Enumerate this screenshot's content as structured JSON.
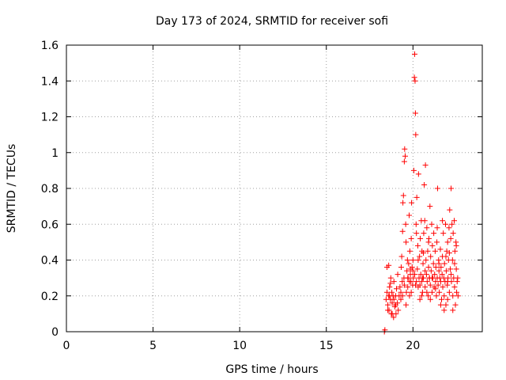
{
  "chart_data": {
    "type": "scatter",
    "title": "Day 173 of 2024, SRMTID for receiver sofi",
    "xlabel": "GPS time / hours",
    "ylabel": "SRMTID / TECUs",
    "xlim": [
      0,
      24
    ],
    "ylim": [
      0,
      1.6
    ],
    "xticks": [
      0,
      5,
      10,
      15,
      20
    ],
    "xtick_labels": [
      "0",
      "5",
      "10",
      "15",
      "20"
    ],
    "yticks": [
      0,
      0.2,
      0.4,
      0.6,
      0.8,
      1.0,
      1.2,
      1.4,
      1.6
    ],
    "ytick_labels": [
      "0",
      "0.2",
      "0.4",
      "0.6",
      "0.8",
      "1",
      "1.2",
      "1.4",
      "1.6"
    ],
    "grid": true,
    "marker": "plus",
    "series_color": "#ff0000",
    "series": [
      {
        "name": "SRMTID",
        "points": [
          [
            18.35,
            0.0
          ],
          [
            18.38,
            0.01
          ],
          [
            18.45,
            0.18
          ],
          [
            18.5,
            0.22
          ],
          [
            18.55,
            0.15
          ],
          [
            18.6,
            0.2
          ],
          [
            18.62,
            0.12
          ],
          [
            18.65,
            0.25
          ],
          [
            18.7,
            0.18
          ],
          [
            18.72,
            0.3
          ],
          [
            18.75,
            0.1
          ],
          [
            18.78,
            0.22
          ],
          [
            18.8,
            0.16
          ],
          [
            18.85,
            0.2
          ],
          [
            18.88,
            0.08
          ],
          [
            18.9,
            0.28
          ],
          [
            18.95,
            0.14
          ],
          [
            19.0,
            0.2
          ],
          [
            19.02,
            0.1
          ],
          [
            19.05,
            0.24
          ],
          [
            19.1,
            0.16
          ],
          [
            19.12,
            0.32
          ],
          [
            19.15,
            0.12
          ],
          [
            19.2,
            0.2
          ],
          [
            18.5,
            0.36
          ],
          [
            18.6,
            0.37
          ],
          [
            18.7,
            0.27
          ],
          [
            18.8,
            0.1
          ],
          [
            18.9,
            0.18
          ],
          [
            19.0,
            0.15
          ],
          [
            18.55,
            0.12
          ],
          [
            18.65,
            0.2
          ],
          [
            19.25,
            0.25
          ],
          [
            19.3,
            0.18
          ],
          [
            19.32,
            0.36
          ],
          [
            19.35,
            0.42
          ],
          [
            19.38,
            0.28
          ],
          [
            19.4,
            0.56
          ],
          [
            19.42,
            0.72
          ],
          [
            19.45,
            0.76
          ],
          [
            19.48,
            0.3
          ],
          [
            19.5,
            0.95
          ],
          [
            19.52,
            1.02
          ],
          [
            19.55,
            0.98
          ],
          [
            19.58,
            0.6
          ],
          [
            19.6,
            0.5
          ],
          [
            19.62,
            0.22
          ],
          [
            19.65,
            0.34
          ],
          [
            19.68,
            0.4
          ],
          [
            19.7,
            0.25
          ],
          [
            19.72,
            0.3
          ],
          [
            19.75,
            0.38
          ],
          [
            19.78,
            0.65
          ],
          [
            19.8,
            0.2
          ],
          [
            19.82,
            0.45
          ],
          [
            19.85,
            0.32
          ],
          [
            19.88,
            0.28
          ],
          [
            19.9,
            0.52
          ],
          [
            19.92,
            0.72
          ],
          [
            19.95,
            0.36
          ],
          [
            19.98,
            0.26
          ],
          [
            20.0,
            0.4
          ],
          [
            20.02,
            0.3
          ],
          [
            20.05,
            0.9
          ],
          [
            20.08,
            1.42
          ],
          [
            20.1,
            1.55
          ],
          [
            20.12,
            1.4
          ],
          [
            20.14,
            1.22
          ],
          [
            20.16,
            1.1
          ],
          [
            20.18,
            0.6
          ],
          [
            20.2,
            0.55
          ],
          [
            20.22,
            0.75
          ],
          [
            20.25,
            0.35
          ],
          [
            20.28,
            0.48
          ],
          [
            20.3,
            0.25
          ],
          [
            20.32,
            0.88
          ],
          [
            20.35,
            0.3
          ],
          [
            20.38,
            0.42
          ],
          [
            20.4,
            0.18
          ],
          [
            20.42,
            0.52
          ],
          [
            20.45,
            0.32
          ],
          [
            20.48,
            0.62
          ],
          [
            20.5,
            0.28
          ],
          [
            20.52,
            0.45
          ],
          [
            20.55,
            0.22
          ],
          [
            20.58,
            0.38
          ],
          [
            20.6,
            0.3
          ],
          [
            20.62,
            0.55
          ],
          [
            20.65,
            0.82
          ],
          [
            20.68,
            0.62
          ],
          [
            20.7,
            0.25
          ],
          [
            20.72,
            0.93
          ],
          [
            20.75,
            0.4
          ],
          [
            20.78,
            0.32
          ],
          [
            20.8,
            0.58
          ],
          [
            20.82,
            0.28
          ],
          [
            20.85,
            0.45
          ],
          [
            20.88,
            0.2
          ],
          [
            20.9,
            0.36
          ],
          [
            20.92,
            0.52
          ],
          [
            20.95,
            0.3
          ],
          [
            20.98,
            0.7
          ],
          [
            21.0,
            0.26
          ],
          [
            21.02,
            0.42
          ],
          [
            21.05,
            0.34
          ],
          [
            21.08,
            0.6
          ],
          [
            21.1,
            0.22
          ],
          [
            21.12,
            0.48
          ],
          [
            21.15,
            0.3
          ],
          [
            21.18,
            0.38
          ],
          [
            21.2,
            0.55
          ],
          [
            21.22,
            0.25
          ],
          [
            21.25,
            0.32
          ],
          [
            21.28,
            0.45
          ],
          [
            21.3,
            0.28
          ],
          [
            21.32,
            0.36
          ],
          [
            21.35,
            0.2
          ],
          [
            21.38,
            0.5
          ],
          [
            21.4,
            0.3
          ],
          [
            21.42,
            0.8
          ],
          [
            21.45,
            0.26
          ],
          [
            21.48,
            0.4
          ],
          [
            21.5,
            0.34
          ],
          [
            21.52,
            0.22
          ],
          [
            21.55,
            0.3
          ],
          [
            21.58,
            0.46
          ],
          [
            21.6,
            0.28
          ],
          [
            21.62,
            0.36
          ],
          [
            21.65,
            0.18
          ],
          [
            21.68,
            0.32
          ],
          [
            21.7,
            0.42
          ],
          [
            21.72,
            0.25
          ],
          [
            21.75,
            0.55
          ],
          [
            21.78,
            0.3
          ],
          [
            21.8,
            0.2
          ],
          [
            21.82,
            0.38
          ],
          [
            21.85,
            0.28
          ],
          [
            21.88,
            0.6
          ],
          [
            21.9,
            0.15
          ],
          [
            21.92,
            0.34
          ],
          [
            21.95,
            0.45
          ],
          [
            21.98,
            0.26
          ],
          [
            22.0,
            0.5
          ],
          [
            22.02,
            0.3
          ],
          [
            22.05,
            0.4
          ],
          [
            22.08,
            0.58
          ],
          [
            22.1,
            0.22
          ],
          [
            22.12,
            0.68
          ],
          [
            22.15,
            0.35
          ],
          [
            22.18,
            0.52
          ],
          [
            22.2,
            0.8
          ],
          [
            22.22,
            0.28
          ],
          [
            22.25,
            0.6
          ],
          [
            22.28,
            0.4
          ],
          [
            22.3,
            0.2
          ],
          [
            22.32,
            0.55
          ],
          [
            22.35,
            0.3
          ],
          [
            22.38,
            0.62
          ],
          [
            22.4,
            0.25
          ],
          [
            22.42,
            0.45
          ],
          [
            22.45,
            0.15
          ],
          [
            22.48,
            0.5
          ],
          [
            22.5,
            0.35
          ],
          [
            22.52,
            0.22
          ],
          [
            22.55,
            0.28
          ],
          [
            22.58,
            0.3
          ],
          [
            22.6,
            0.2
          ],
          [
            21.6,
            0.15
          ],
          [
            21.8,
            0.12
          ],
          [
            22.0,
            0.18
          ],
          [
            22.3,
            0.12
          ],
          [
            21.0,
            0.18
          ],
          [
            20.8,
            0.22
          ],
          [
            20.5,
            0.2
          ],
          [
            20.2,
            0.28
          ],
          [
            19.9,
            0.22
          ],
          [
            19.6,
            0.15
          ],
          [
            19.4,
            0.2
          ],
          [
            22.1,
            0.44
          ],
          [
            21.7,
            0.62
          ],
          [
            21.4,
            0.58
          ],
          [
            20.9,
            0.5
          ],
          [
            20.6,
            0.44
          ],
          [
            20.3,
            0.4
          ],
          [
            20.0,
            0.34
          ],
          [
            19.7,
            0.3
          ],
          [
            22.4,
            0.38
          ],
          [
            22.2,
            0.32
          ],
          [
            21.9,
            0.42
          ],
          [
            21.5,
            0.38
          ],
          [
            21.1,
            0.3
          ],
          [
            20.7,
            0.34
          ],
          [
            20.4,
            0.26
          ],
          [
            20.1,
            0.32
          ],
          [
            19.8,
            0.28
          ],
          [
            19.5,
            0.26
          ],
          [
            19.3,
            0.22
          ],
          [
            22.5,
            0.48
          ],
          [
            22.0,
            0.28
          ],
          [
            21.3,
            0.24
          ],
          [
            20.95,
            0.3
          ],
          [
            20.55,
            0.3
          ],
          [
            20.15,
            0.26
          ],
          [
            19.85,
            0.35
          ]
        ]
      }
    ]
  }
}
